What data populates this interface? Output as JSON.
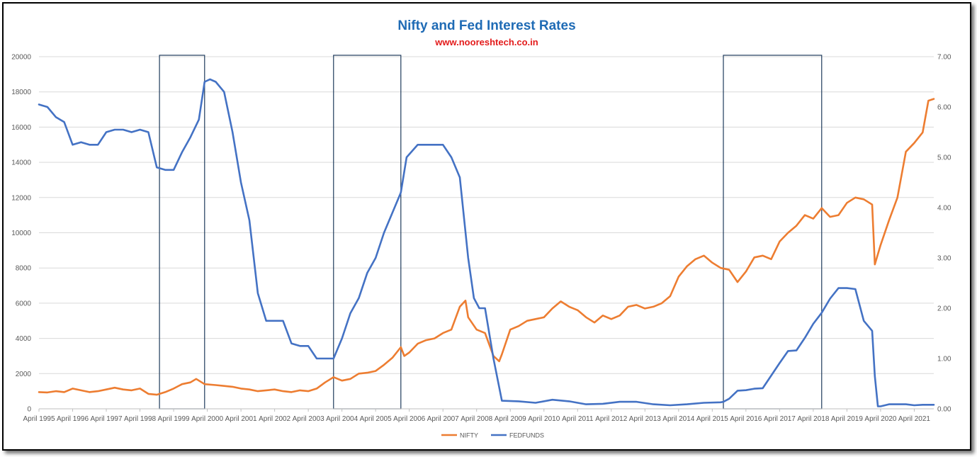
{
  "chart_data": {
    "type": "line",
    "title": "Nifty and Fed Interest Rates",
    "subtitle": "www.nooreshtech.co.in",
    "x_tick_labels": [
      "April 1995",
      "April 1996",
      "April 1997",
      "April 1998",
      "April 1999",
      "April 2000",
      "April 2001",
      "April 2002",
      "April 2003",
      "April 2004",
      "April 2005",
      "April 2006",
      "April 2007",
      "April 2008",
      "April 2009",
      "April 2010",
      "April 2011",
      "April 2012",
      "April 2013",
      "April 2014",
      "April 2015",
      "April 2016",
      "April 2017",
      "April 2018",
      "April 2019",
      "April 2020",
      "April 2021"
    ],
    "x_range": [
      1995.25,
      2021.83
    ],
    "y_left": {
      "ylim": [
        0,
        20000
      ],
      "ticks": [
        "0",
        "2000",
        "4000",
        "6000",
        "8000",
        "10000",
        "12000",
        "14000",
        "16000",
        "18000",
        "20000"
      ]
    },
    "y_right": {
      "ylim": [
        0,
        7
      ],
      "ticks": [
        "0.00",
        "1.00",
        "2.00",
        "3.00",
        "4.00",
        "5.00",
        "6.00",
        "7.00"
      ]
    },
    "grid": "horizontal",
    "legend_position": "bottom",
    "highlight_boxes": [
      {
        "x_start": 1998.83,
        "x_end": 2000.17
      },
      {
        "x_start": 2004.0,
        "x_end": 2006.0
      },
      {
        "x_start": 2015.58,
        "x_end": 2018.5
      }
    ],
    "series": [
      {
        "name": "NIFTY",
        "color": "#ed7d31",
        "axis": "left",
        "x": [
          1995.25,
          1995.5,
          1995.75,
          1996.0,
          1996.25,
          1996.5,
          1996.75,
          1997.0,
          1997.25,
          1997.5,
          1997.75,
          1998.0,
          1998.25,
          1998.5,
          1998.75,
          1999.0,
          1999.25,
          1999.5,
          1999.75,
          1999.92,
          2000.17,
          2000.5,
          2000.75,
          2001.0,
          2001.25,
          2001.5,
          2001.75,
          2002.0,
          2002.25,
          2002.5,
          2002.75,
          2003.0,
          2003.25,
          2003.5,
          2003.75,
          2004.0,
          2004.25,
          2004.5,
          2004.75,
          2005.0,
          2005.25,
          2005.5,
          2005.75,
          2006.0,
          2006.1,
          2006.25,
          2006.5,
          2006.75,
          2007.0,
          2007.25,
          2007.5,
          2007.75,
          2007.92,
          2008.0,
          2008.25,
          2008.5,
          2008.75,
          2008.92,
          2009.0,
          2009.25,
          2009.5,
          2009.75,
          2010.0,
          2010.25,
          2010.5,
          2010.75,
          2011.0,
          2011.25,
          2011.5,
          2011.75,
          2012.0,
          2012.25,
          2012.5,
          2012.75,
          2013.0,
          2013.25,
          2013.5,
          2013.75,
          2014.0,
          2014.25,
          2014.5,
          2014.75,
          2015.0,
          2015.25,
          2015.5,
          2015.75,
          2016.0,
          2016.25,
          2016.5,
          2016.75,
          2017.0,
          2017.25,
          2017.5,
          2017.75,
          2018.0,
          2018.25,
          2018.5,
          2018.75,
          2019.0,
          2019.25,
          2019.5,
          2019.75,
          2020.0,
          2020.08,
          2020.25,
          2020.5,
          2020.75,
          2021.0,
          2021.25,
          2021.5,
          2021.67,
          2021.83
        ],
        "values": [
          950,
          930,
          1000,
          950,
          1150,
          1050,
          950,
          1000,
          1100,
          1200,
          1100,
          1050,
          1150,
          850,
          800,
          950,
          1150,
          1400,
          1500,
          1700,
          1400,
          1350,
          1300,
          1250,
          1150,
          1100,
          1000,
          1050,
          1100,
          1000,
          950,
          1050,
          1000,
          1150,
          1500,
          1800,
          1600,
          1700,
          2000,
          2050,
          2150,
          2500,
          2900,
          3500,
          3000,
          3200,
          3700,
          3900,
          4000,
          4300,
          4500,
          5800,
          6150,
          5200,
          4500,
          4300,
          3000,
          2700,
          3100,
          4500,
          4700,
          5000,
          5100,
          5200,
          5700,
          6100,
          5800,
          5600,
          5200,
          4900,
          5300,
          5100,
          5300,
          5800,
          5900,
          5700,
          5800,
          6000,
          6400,
          7500,
          8100,
          8500,
          8700,
          8300,
          8000,
          7900,
          7200,
          7800,
          8600,
          8700,
          8500,
          9500,
          10000,
          10400,
          11000,
          10800,
          11400,
          10900,
          11000,
          11700,
          12000,
          11900,
          11600,
          8200,
          9300,
          10700,
          12000,
          14600,
          15100,
          15700,
          17500,
          17600
        ]
      },
      {
        "name": "FEDFUNDS",
        "color": "#4472c4",
        "axis": "right",
        "x": [
          1995.25,
          1995.5,
          1995.75,
          1996.0,
          1996.25,
          1996.5,
          1996.75,
          1997.0,
          1997.25,
          1997.5,
          1997.75,
          1998.0,
          1998.25,
          1998.5,
          1998.75,
          1999.0,
          1999.25,
          1999.5,
          1999.75,
          2000.0,
          2000.17,
          2000.33,
          2000.5,
          2000.75,
          2001.0,
          2001.25,
          2001.5,
          2001.75,
          2002.0,
          2002.25,
          2002.5,
          2002.75,
          2003.0,
          2003.25,
          2003.5,
          2003.75,
          2004.0,
          2004.25,
          2004.5,
          2004.75,
          2005.0,
          2005.25,
          2005.5,
          2005.75,
          2006.0,
          2006.17,
          2006.5,
          2006.75,
          2007.0,
          2007.25,
          2007.5,
          2007.75,
          2008.0,
          2008.17,
          2008.33,
          2008.5,
          2008.75,
          2009.0,
          2009.5,
          2010.0,
          2010.5,
          2011.0,
          2011.5,
          2012.0,
          2012.5,
          2013.0,
          2013.5,
          2014.0,
          2014.5,
          2015.0,
          2015.5,
          2015.58,
          2015.75,
          2016.0,
          2016.25,
          2016.5,
          2016.75,
          2017.0,
          2017.25,
          2017.5,
          2017.75,
          2018.0,
          2018.25,
          2018.5,
          2018.75,
          2019.0,
          2019.25,
          2019.5,
          2019.75,
          2020.0,
          2020.08,
          2020.17,
          2020.25,
          2020.5,
          2020.75,
          2021.0,
          2021.25,
          2021.5,
          2021.83
        ],
        "values": [
          6.05,
          6.0,
          5.8,
          5.7,
          5.25,
          5.3,
          5.25,
          5.25,
          5.5,
          5.55,
          5.55,
          5.5,
          5.55,
          5.5,
          4.8,
          4.75,
          4.75,
          5.1,
          5.4,
          5.75,
          6.5,
          6.55,
          6.5,
          6.3,
          5.5,
          4.5,
          3.75,
          2.3,
          1.75,
          1.75,
          1.75,
          1.3,
          1.25,
          1.25,
          1.0,
          1.0,
          1.0,
          1.4,
          1.9,
          2.2,
          2.7,
          3.0,
          3.5,
          3.9,
          4.3,
          5.0,
          5.25,
          5.25,
          5.25,
          5.25,
          5.0,
          4.6,
          3.0,
          2.2,
          2.0,
          2.0,
          1.0,
          0.16,
          0.15,
          0.12,
          0.18,
          0.15,
          0.09,
          0.1,
          0.14,
          0.14,
          0.09,
          0.07,
          0.09,
          0.12,
          0.13,
          0.14,
          0.2,
          0.36,
          0.37,
          0.4,
          0.41,
          0.66,
          0.91,
          1.15,
          1.16,
          1.41,
          1.69,
          1.91,
          2.19,
          2.4,
          2.4,
          2.38,
          1.75,
          1.55,
          0.65,
          0.05,
          0.05,
          0.09,
          0.09,
          0.09,
          0.07,
          0.08,
          0.08
        ]
      }
    ]
  }
}
